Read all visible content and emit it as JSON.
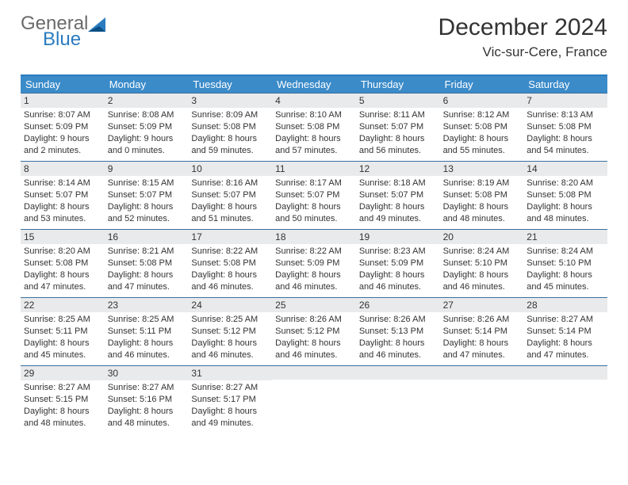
{
  "logo": {
    "main": "General",
    "sub": "Blue"
  },
  "title": "December 2024",
  "location": "Vic-sur-Cere, France",
  "day_headers": [
    "Sunday",
    "Monday",
    "Tuesday",
    "Wednesday",
    "Thursday",
    "Friday",
    "Saturday"
  ],
  "colors": {
    "header_bg": "#3b8bc9",
    "header_text": "#ffffff",
    "border_top": "#2b7bbf",
    "week_border": "#3b6fa0",
    "daynum_bg": "#e9eaeb",
    "text": "#333333",
    "logo_gray": "#6a6a6a",
    "logo_blue": "#2b7bbf"
  },
  "weeks": [
    [
      {
        "n": "1",
        "sr": "Sunrise: 8:07 AM",
        "ss": "Sunset: 5:09 PM",
        "dl": "Daylight: 9 hours and 2 minutes."
      },
      {
        "n": "2",
        "sr": "Sunrise: 8:08 AM",
        "ss": "Sunset: 5:09 PM",
        "dl": "Daylight: 9 hours and 0 minutes."
      },
      {
        "n": "3",
        "sr": "Sunrise: 8:09 AM",
        "ss": "Sunset: 5:08 PM",
        "dl": "Daylight: 8 hours and 59 minutes."
      },
      {
        "n": "4",
        "sr": "Sunrise: 8:10 AM",
        "ss": "Sunset: 5:08 PM",
        "dl": "Daylight: 8 hours and 57 minutes."
      },
      {
        "n": "5",
        "sr": "Sunrise: 8:11 AM",
        "ss": "Sunset: 5:07 PM",
        "dl": "Daylight: 8 hours and 56 minutes."
      },
      {
        "n": "6",
        "sr": "Sunrise: 8:12 AM",
        "ss": "Sunset: 5:08 PM",
        "dl": "Daylight: 8 hours and 55 minutes."
      },
      {
        "n": "7",
        "sr": "Sunrise: 8:13 AM",
        "ss": "Sunset: 5:08 PM",
        "dl": "Daylight: 8 hours and 54 minutes."
      }
    ],
    [
      {
        "n": "8",
        "sr": "Sunrise: 8:14 AM",
        "ss": "Sunset: 5:07 PM",
        "dl": "Daylight: 8 hours and 53 minutes."
      },
      {
        "n": "9",
        "sr": "Sunrise: 8:15 AM",
        "ss": "Sunset: 5:07 PM",
        "dl": "Daylight: 8 hours and 52 minutes."
      },
      {
        "n": "10",
        "sr": "Sunrise: 8:16 AM",
        "ss": "Sunset: 5:07 PM",
        "dl": "Daylight: 8 hours and 51 minutes."
      },
      {
        "n": "11",
        "sr": "Sunrise: 8:17 AM",
        "ss": "Sunset: 5:07 PM",
        "dl": "Daylight: 8 hours and 50 minutes."
      },
      {
        "n": "12",
        "sr": "Sunrise: 8:18 AM",
        "ss": "Sunset: 5:07 PM",
        "dl": "Daylight: 8 hours and 49 minutes."
      },
      {
        "n": "13",
        "sr": "Sunrise: 8:19 AM",
        "ss": "Sunset: 5:08 PM",
        "dl": "Daylight: 8 hours and 48 minutes."
      },
      {
        "n": "14",
        "sr": "Sunrise: 8:20 AM",
        "ss": "Sunset: 5:08 PM",
        "dl": "Daylight: 8 hours and 48 minutes."
      }
    ],
    [
      {
        "n": "15",
        "sr": "Sunrise: 8:20 AM",
        "ss": "Sunset: 5:08 PM",
        "dl": "Daylight: 8 hours and 47 minutes."
      },
      {
        "n": "16",
        "sr": "Sunrise: 8:21 AM",
        "ss": "Sunset: 5:08 PM",
        "dl": "Daylight: 8 hours and 47 minutes."
      },
      {
        "n": "17",
        "sr": "Sunrise: 8:22 AM",
        "ss": "Sunset: 5:08 PM",
        "dl": "Daylight: 8 hours and 46 minutes."
      },
      {
        "n": "18",
        "sr": "Sunrise: 8:22 AM",
        "ss": "Sunset: 5:09 PM",
        "dl": "Daylight: 8 hours and 46 minutes."
      },
      {
        "n": "19",
        "sr": "Sunrise: 8:23 AM",
        "ss": "Sunset: 5:09 PM",
        "dl": "Daylight: 8 hours and 46 minutes."
      },
      {
        "n": "20",
        "sr": "Sunrise: 8:24 AM",
        "ss": "Sunset: 5:10 PM",
        "dl": "Daylight: 8 hours and 46 minutes."
      },
      {
        "n": "21",
        "sr": "Sunrise: 8:24 AM",
        "ss": "Sunset: 5:10 PM",
        "dl": "Daylight: 8 hours and 45 minutes."
      }
    ],
    [
      {
        "n": "22",
        "sr": "Sunrise: 8:25 AM",
        "ss": "Sunset: 5:11 PM",
        "dl": "Daylight: 8 hours and 45 minutes."
      },
      {
        "n": "23",
        "sr": "Sunrise: 8:25 AM",
        "ss": "Sunset: 5:11 PM",
        "dl": "Daylight: 8 hours and 46 minutes."
      },
      {
        "n": "24",
        "sr": "Sunrise: 8:25 AM",
        "ss": "Sunset: 5:12 PM",
        "dl": "Daylight: 8 hours and 46 minutes."
      },
      {
        "n": "25",
        "sr": "Sunrise: 8:26 AM",
        "ss": "Sunset: 5:12 PM",
        "dl": "Daylight: 8 hours and 46 minutes."
      },
      {
        "n": "26",
        "sr": "Sunrise: 8:26 AM",
        "ss": "Sunset: 5:13 PM",
        "dl": "Daylight: 8 hours and 46 minutes."
      },
      {
        "n": "27",
        "sr": "Sunrise: 8:26 AM",
        "ss": "Sunset: 5:14 PM",
        "dl": "Daylight: 8 hours and 47 minutes."
      },
      {
        "n": "28",
        "sr": "Sunrise: 8:27 AM",
        "ss": "Sunset: 5:14 PM",
        "dl": "Daylight: 8 hours and 47 minutes."
      }
    ],
    [
      {
        "n": "29",
        "sr": "Sunrise: 8:27 AM",
        "ss": "Sunset: 5:15 PM",
        "dl": "Daylight: 8 hours and 48 minutes."
      },
      {
        "n": "30",
        "sr": "Sunrise: 8:27 AM",
        "ss": "Sunset: 5:16 PM",
        "dl": "Daylight: 8 hours and 48 minutes."
      },
      {
        "n": "31",
        "sr": "Sunrise: 8:27 AM",
        "ss": "Sunset: 5:17 PM",
        "dl": "Daylight: 8 hours and 49 minutes."
      },
      {
        "empty": true
      },
      {
        "empty": true
      },
      {
        "empty": true
      },
      {
        "empty": true
      }
    ]
  ]
}
